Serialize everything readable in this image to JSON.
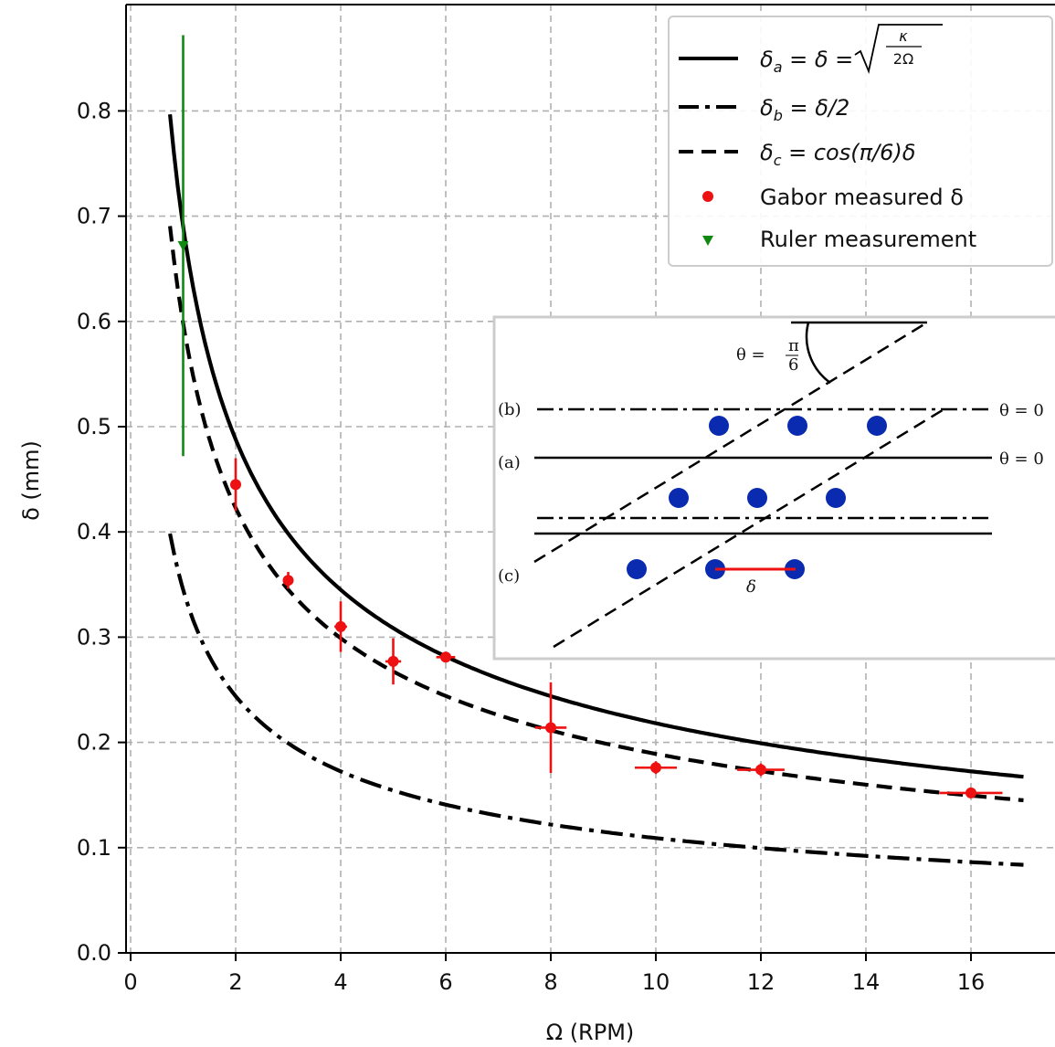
{
  "chart_data": {
    "type": "line",
    "xlabel": "Ω (RPM)",
    "ylabel": "δ (mm)",
    "xlim": [
      -0.1,
      17.7
    ],
    "ylim": [
      0.0,
      0.9
    ],
    "x_ticks": [
      0,
      2,
      4,
      6,
      8,
      10,
      12,
      14,
      16
    ],
    "y_ticks": [
      0.0,
      0.1,
      0.2,
      0.3,
      0.4,
      0.5,
      0.6,
      0.7,
      0.8
    ],
    "x_tick_labels": [
      "0",
      "2",
      "4",
      "6",
      "8",
      "10",
      "12",
      "14",
      "16"
    ],
    "y_tick_labels": [
      "0.0",
      "0.1",
      "0.2",
      "0.3",
      "0.4",
      "0.5",
      "0.6",
      "0.7",
      "0.8"
    ],
    "grid": true,
    "legend_position": "top-right",
    "curves": [
      {
        "style": "solid",
        "label": "δa = δ = √(κ/2Ω)",
        "formula": "0.690/sqrt(x)",
        "x_range": [
          0.75,
          17
        ]
      },
      {
        "style": "dashdot",
        "label": "δb = δ/2",
        "formula": "0.345/sqrt(x)",
        "x_range": [
          0.75,
          17
        ]
      },
      {
        "style": "dashed",
        "label": "δc = cos(π/6)δ",
        "formula": "0.598/sqrt(x)",
        "x_range": [
          0.75,
          17
        ]
      }
    ],
    "series": [
      {
        "name": "Gabor measured δ",
        "marker": "circle",
        "color": "#ee1111",
        "points": [
          {
            "x": 2,
            "y": 0.445,
            "xerr": 0.05,
            "yerr": 0.025
          },
          {
            "x": 3,
            "y": 0.354,
            "xerr": 0.08,
            "yerr": 0.008
          },
          {
            "x": 4,
            "y": 0.31,
            "xerr": 0.12,
            "yerr": 0.024
          },
          {
            "x": 5,
            "y": 0.277,
            "xerr": 0.15,
            "yerr": 0.022
          },
          {
            "x": 6,
            "y": 0.281,
            "xerr": 0.18,
            "yerr": 0.004
          },
          {
            "x": 8,
            "y": 0.214,
            "xerr": 0.3,
            "yerr": 0.043
          },
          {
            "x": 10,
            "y": 0.176,
            "xerr": 0.4,
            "yerr": 0.006
          },
          {
            "x": 12,
            "y": 0.174,
            "xerr": 0.45,
            "yerr": 0.006
          },
          {
            "x": 16,
            "y": 0.152,
            "xerr": 0.6,
            "yerr": 0.003
          }
        ]
      },
      {
        "name": "Ruler measurement",
        "marker": "triangle-down",
        "color": "#118811",
        "points": [
          {
            "x": 1,
            "y": 0.672,
            "yerr_low": 0.2,
            "yerr_high": 0.2
          }
        ]
      }
    ],
    "legend": [
      {
        "style": "solid",
        "label": "δa = δ = √(κ/2Ω)"
      },
      {
        "style": "dashdot",
        "label": "δb = δ/2"
      },
      {
        "style": "dashed",
        "label": "δc = cos(π/6)δ"
      },
      {
        "style": "marker-circle",
        "label": "Gabor measured δ"
      },
      {
        "style": "marker-triangle",
        "label": "Ruler measurement"
      }
    ],
    "inset": {
      "labels": {
        "a": "(a)",
        "b": "(b)",
        "c": "(c)",
        "theta": "θ = π/6",
        "theta_zero": "θ = 0",
        "delta": "δ"
      }
    },
    "colors": {
      "curve": "#000000",
      "measured": "#ee1111",
      "ruler": "#118811",
      "dots": "#0a2bb0",
      "grid": "#b0b0b0"
    }
  }
}
